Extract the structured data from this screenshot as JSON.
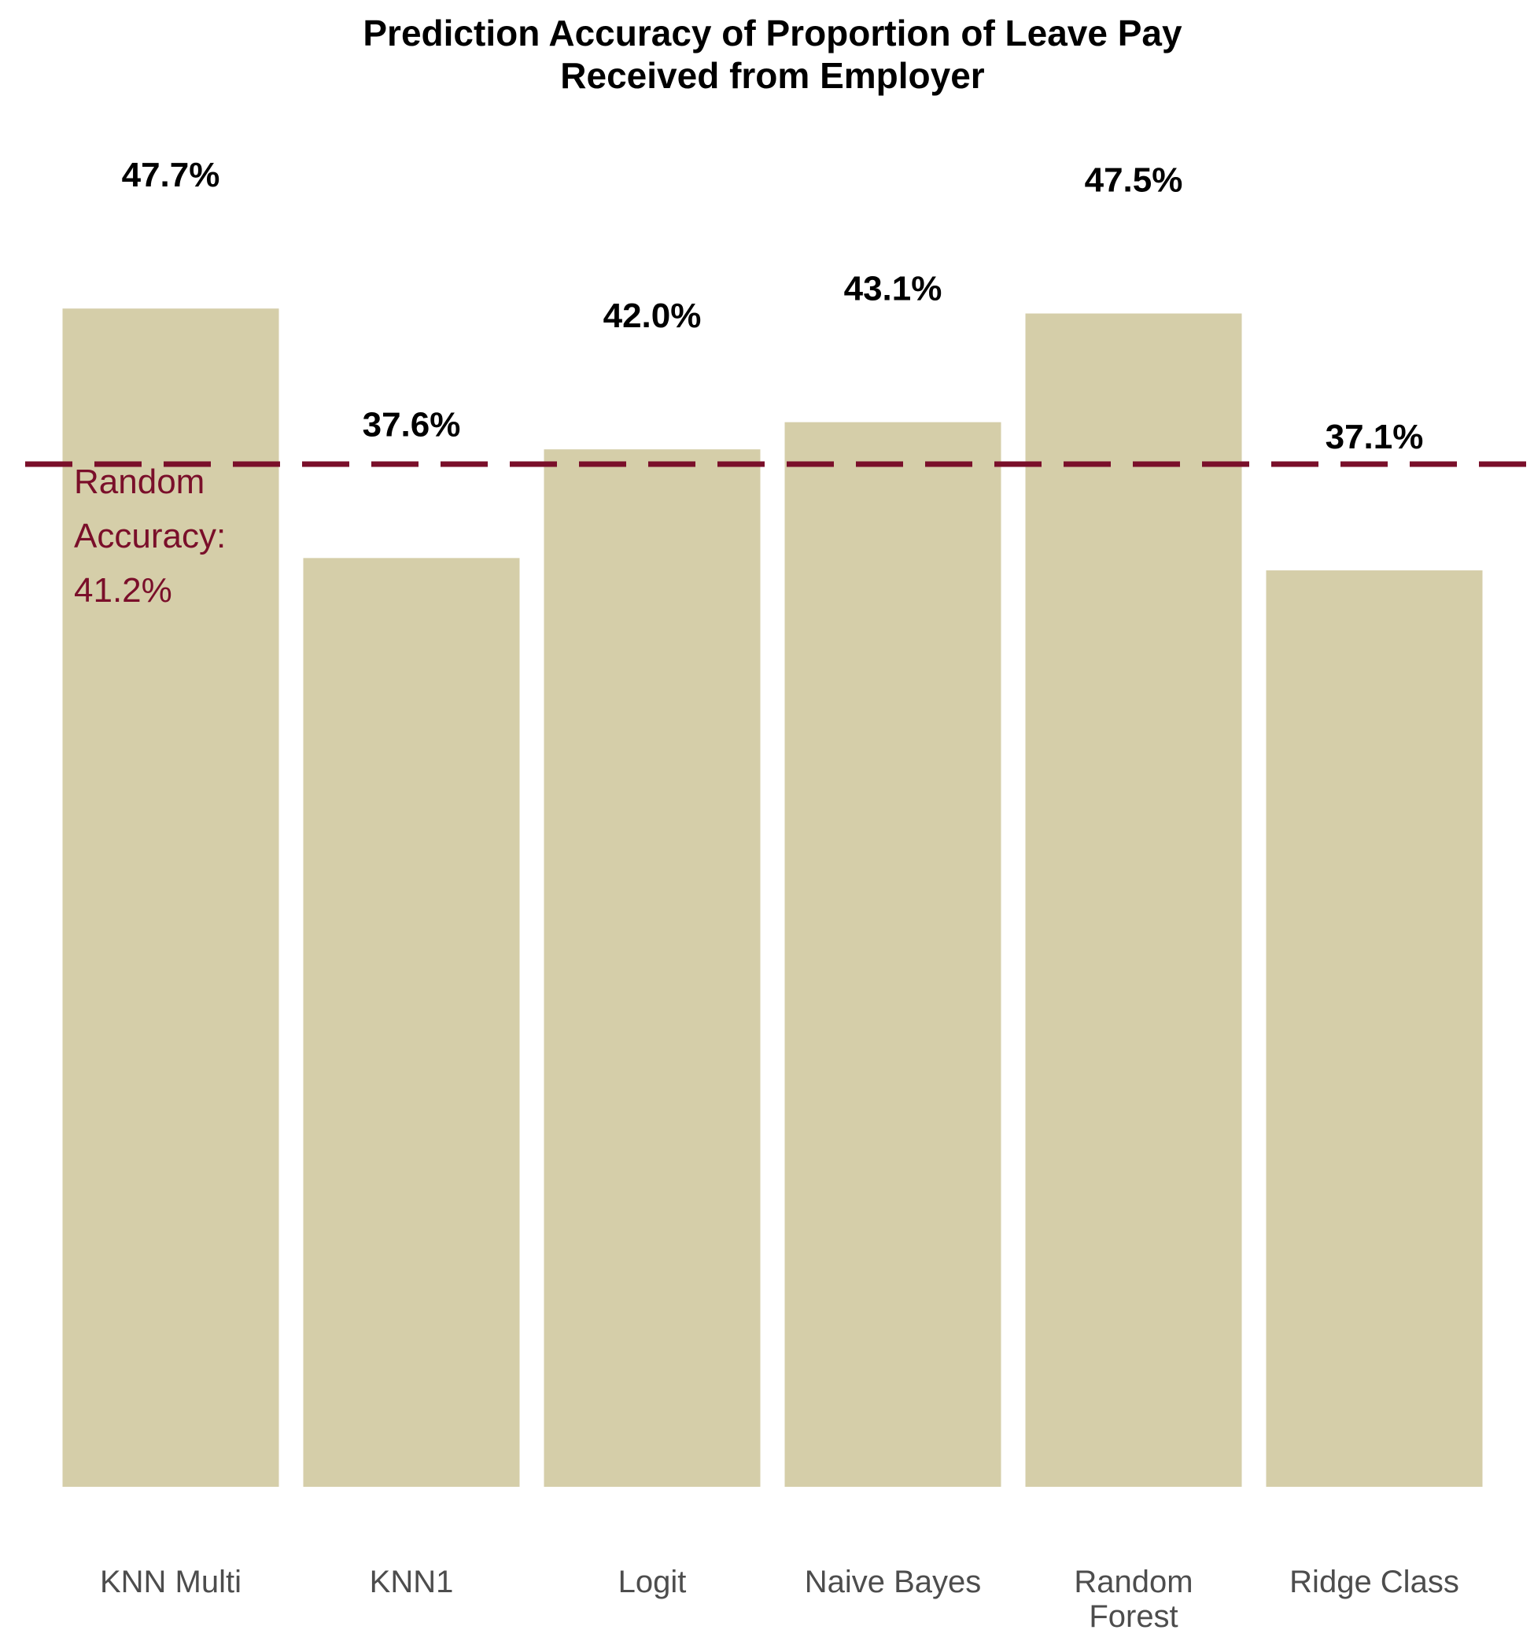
{
  "chart_data": {
    "type": "bar",
    "title_lines": [
      "Prediction Accuracy of Proportion of Leave Pay",
      "Received from Employer"
    ],
    "categories": [
      "KNN Multi",
      "KNN1",
      "Logit",
      "Naive Bayes",
      "Random Forest",
      "Ridge Class"
    ],
    "category_lines": [
      [
        "KNN Multi"
      ],
      [
        "KNN1"
      ],
      [
        "Logit"
      ],
      [
        "Naive Bayes"
      ],
      [
        "Random",
        "Forest"
      ],
      [
        "Ridge Class"
      ]
    ],
    "values": [
      47.7,
      37.6,
      42.0,
      43.1,
      47.5,
      37.1
    ],
    "data_labels": [
      "47.7%",
      "37.6%",
      "42.0%",
      "43.1%",
      "47.5%",
      "37.1%"
    ],
    "ylim": [
      0,
      50
    ],
    "grid": false,
    "reference_line": {
      "value": 41.2,
      "label_lines": [
        "Random",
        "Accuracy:",
        "41.2%"
      ]
    },
    "colors": {
      "bar": "#d5cea9",
      "reference": "#7a0f2a",
      "data_label": "#000000",
      "tick_label": "#4d4d4d"
    }
  }
}
